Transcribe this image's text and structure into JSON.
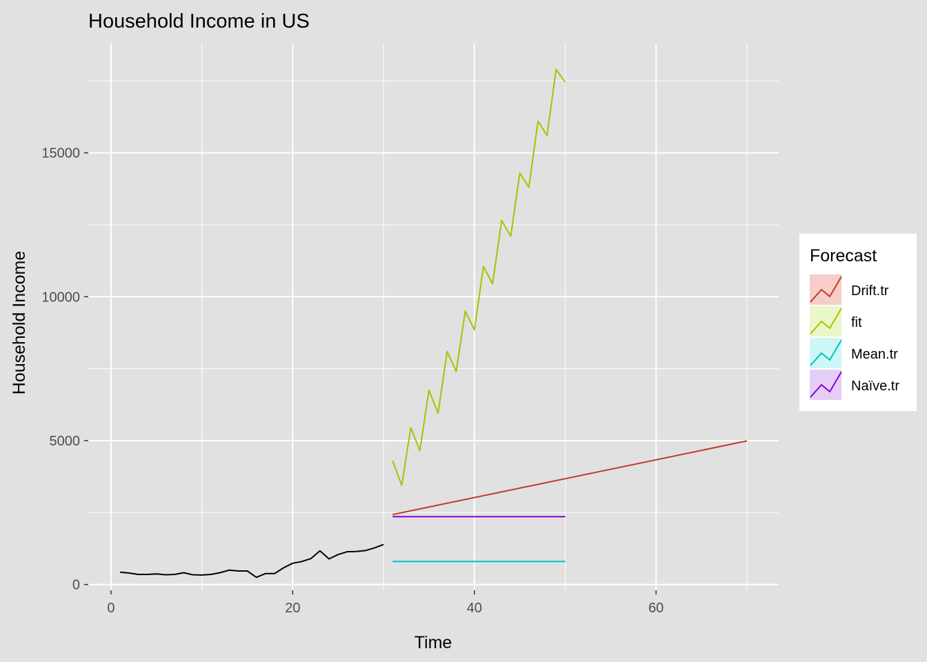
{
  "chart_data": {
    "type": "line",
    "title": "Household Income in US",
    "xlabel": "Time",
    "ylabel": "Household Income",
    "xlim": [
      -2.5,
      73.5
    ],
    "ylim": [
      -200,
      18800
    ],
    "x_ticks": [
      0,
      20,
      40,
      60
    ],
    "y_ticks": [
      0,
      5000,
      10000,
      15000
    ],
    "x_tick_labels": [
      "0",
      "20",
      "40",
      "60"
    ],
    "y_tick_labels": [
      "0",
      "5000",
      "10000",
      "15000"
    ],
    "grid": true,
    "legend": {
      "title": "Forecast",
      "placement": "right"
    },
    "colors": {
      "background": "#e1e1e1",
      "grid": "#ffffff",
      "observed": "#000000",
      "Drift.tr": "#c0392b",
      "fit": "#a3c400",
      "Mean.tr": "#00bfc4",
      "Naïve.tr": "#8800cc"
    },
    "observed": {
      "x": [
        1,
        2,
        3,
        4,
        5,
        6,
        7,
        8,
        9,
        10,
        11,
        12,
        13,
        14,
        15,
        16,
        17,
        18,
        19,
        20,
        21,
        22,
        23,
        24,
        25,
        26,
        27,
        28,
        29,
        30
      ],
      "values": [
        430,
        400,
        350,
        350,
        370,
        340,
        350,
        410,
        340,
        330,
        350,
        410,
        500,
        470,
        470,
        250,
        380,
        380,
        580,
        740,
        800,
        900,
        1170,
        890,
        1040,
        1140,
        1150,
        1180,
        1270,
        1390
      ]
    },
    "series": [
      {
        "name": "Drift.tr",
        "x": [
          31,
          70
        ],
        "values": [
          2430,
          4990
        ]
      },
      {
        "name": "fit",
        "x": [
          31,
          32,
          33,
          34,
          35,
          36,
          37,
          38,
          39,
          40,
          41,
          42,
          43,
          44,
          45,
          46,
          47,
          48,
          49,
          50
        ],
        "values": [
          4300,
          3450,
          5450,
          4650,
          6750,
          5950,
          8100,
          7400,
          9500,
          8850,
          11050,
          10450,
          12650,
          12100,
          14300,
          13800,
          16100,
          15600,
          17900,
          17450
        ]
      },
      {
        "name": "Mean.tr",
        "x": [
          31,
          50
        ],
        "values": [
          800,
          800
        ]
      },
      {
        "name": "Naïve.tr",
        "x": [
          31,
          50
        ],
        "values": [
          2360,
          2360
        ]
      }
    ]
  }
}
